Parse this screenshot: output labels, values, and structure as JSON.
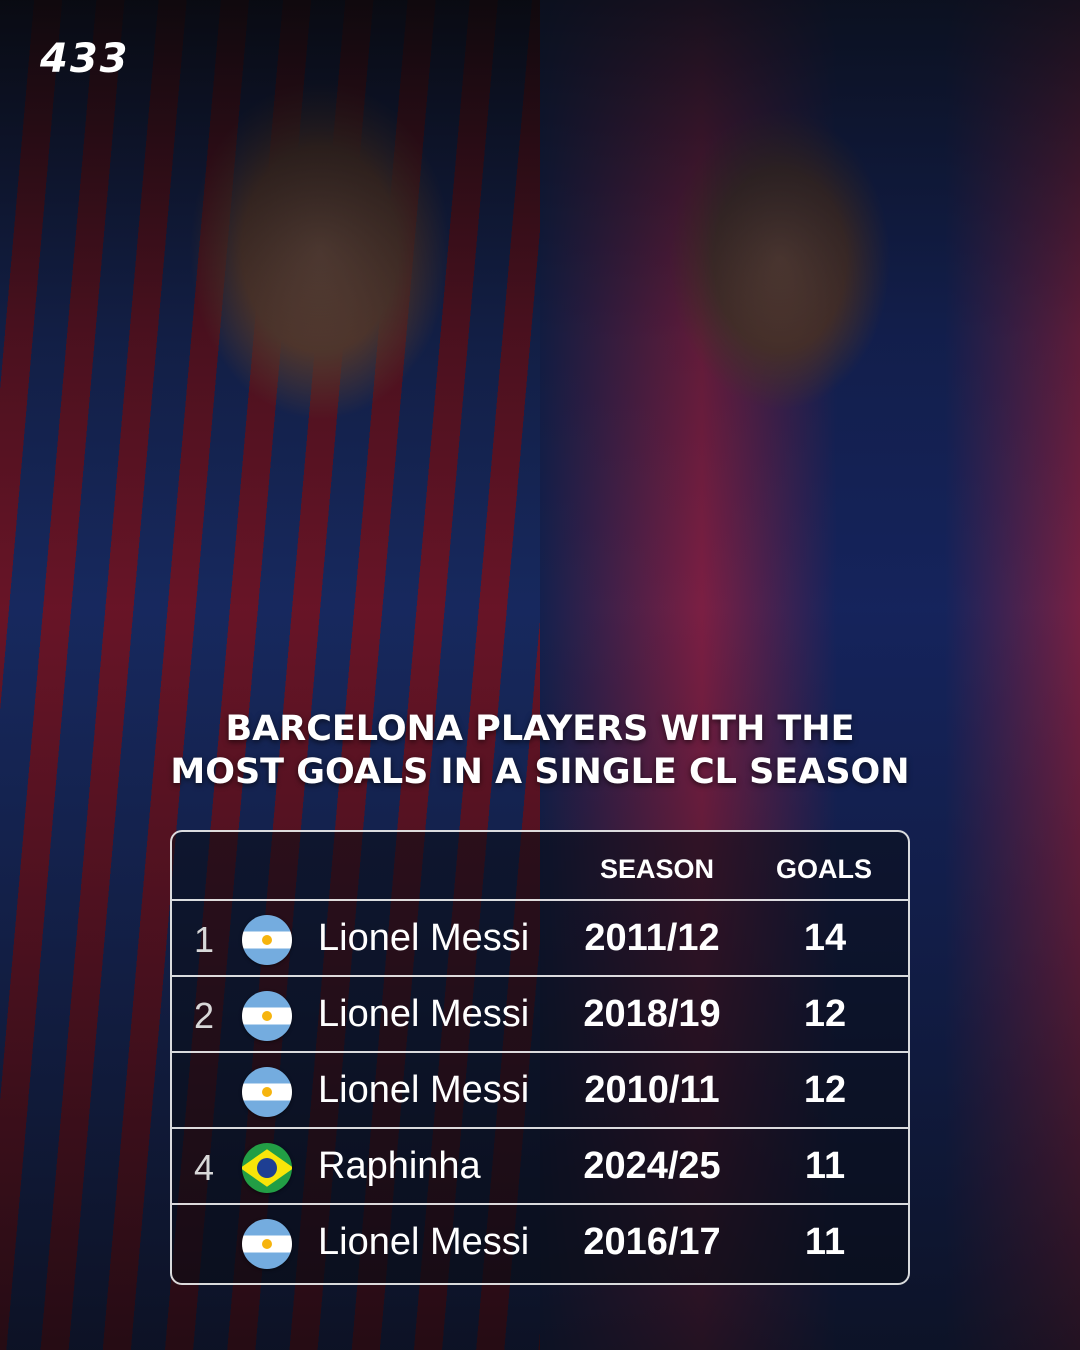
{
  "brand": {
    "logo": "433"
  },
  "title": {
    "line1": "Barcelona players with the",
    "line2": "most goals in a single CL season"
  },
  "table": {
    "headers": {
      "season": "SEASON",
      "goals": "GOALS"
    },
    "rows": [
      {
        "rank": "1",
        "flag": "argentina",
        "name": "Lionel Messi",
        "season": "2011/12",
        "goals": "14"
      },
      {
        "rank": "2",
        "flag": "argentina",
        "name": "Lionel Messi",
        "season": "2018/19",
        "goals": "12"
      },
      {
        "rank": "",
        "flag": "argentina",
        "name": "Lionel Messi",
        "season": "2010/11",
        "goals": "12"
      },
      {
        "rank": "4",
        "flag": "brazil",
        "name": "Raphinha",
        "season": "2024/25",
        "goals": "11"
      },
      {
        "rank": "",
        "flag": "argentina",
        "name": "Lionel Messi",
        "season": "2016/17",
        "goals": "11"
      }
    ]
  }
}
